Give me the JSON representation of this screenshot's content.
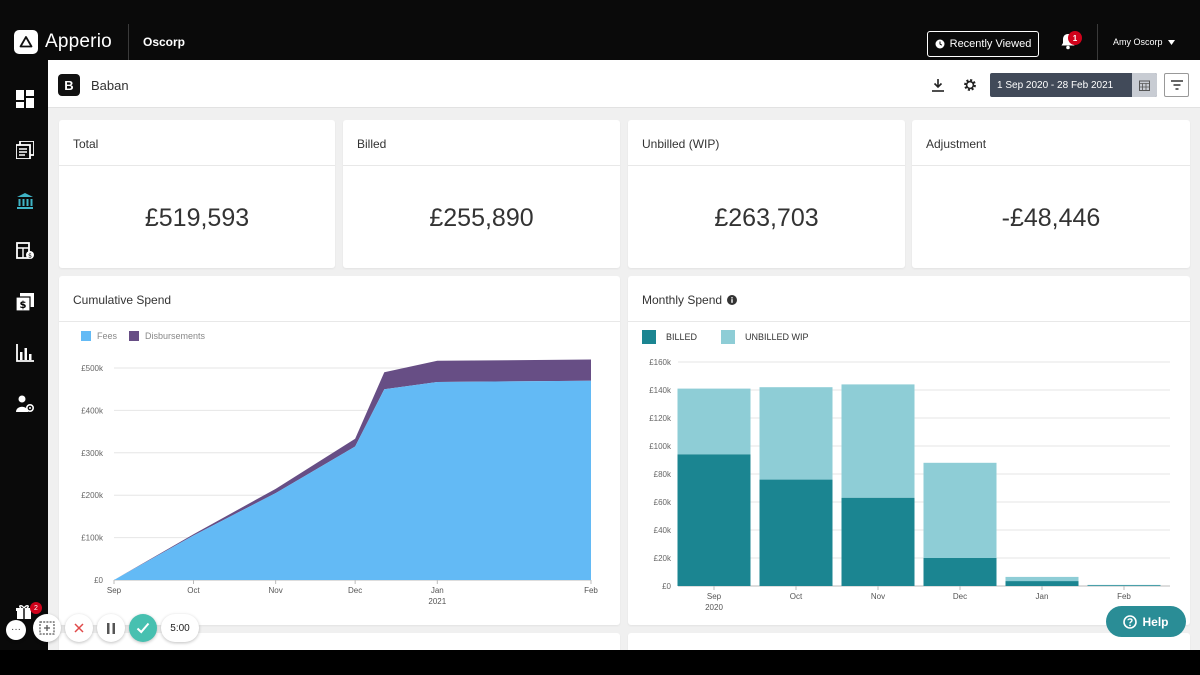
{
  "app": {
    "brand": "Apperio",
    "org": "Oscorp"
  },
  "topbar": {
    "recently_viewed": "Recently Viewed",
    "notification_count": "1",
    "user": "Amy Oscorp"
  },
  "workspace": {
    "badge": "B",
    "name": "Baban"
  },
  "filters": {
    "date_range": "1 Sep 2020 - 28 Feb 2021"
  },
  "stats": [
    {
      "label": "Total",
      "value": "£519,593"
    },
    {
      "label": "Billed",
      "value": "£255,890"
    },
    {
      "label": "Unbilled (WIP)",
      "value": "£263,703"
    },
    {
      "label": "Adjustment",
      "value": "-£48,446"
    }
  ],
  "colors": {
    "fees": "#63baf5",
    "disbursements": "#674e85",
    "billed": "#1b8591",
    "unbilled": "#8ecdd6",
    "help": "#2a8d96"
  },
  "chart_data": [
    {
      "type": "area",
      "title": "Cumulative Spend",
      "legend": [
        "Fees",
        "Disbursements"
      ],
      "x_ticks": [
        "Sep",
        "Oct",
        "Nov",
        "Dec",
        "Jan",
        "Feb"
      ],
      "x_tick_sublabels": {
        "Jan": "2021"
      },
      "y_ticks": [
        "£0",
        "£100k",
        "£200k",
        "£300k",
        "£400k",
        "£500k"
      ],
      "ylim": [
        0,
        500000
      ],
      "x": [
        "2020-09-01",
        "2020-10-01",
        "2020-11-01",
        "2020-12-01",
        "2020-12-12",
        "2021-01-01",
        "2021-02-28"
      ],
      "series": [
        {
          "name": "Fees",
          "values": [
            0,
            105000,
            205000,
            315000,
            450000,
            467000,
            470000
          ]
        },
        {
          "name": "Disbursements",
          "values": [
            0,
            3000,
            10000,
            18000,
            40000,
            50000,
            50000
          ]
        }
      ]
    },
    {
      "type": "bar",
      "stacked": true,
      "title": "Monthly Spend",
      "legend": [
        "BILLED",
        "UNBILLED WIP"
      ],
      "categories": [
        "Sep",
        "Oct",
        "Nov",
        "Dec",
        "Jan",
        "Feb"
      ],
      "category_sublabels": {
        "Sep": "2020"
      },
      "y_ticks": [
        "£0",
        "£20k",
        "£40k",
        "£60k",
        "£80k",
        "£100k",
        "£120k",
        "£140k",
        "£160k"
      ],
      "ylim": [
        0,
        160000
      ],
      "series": [
        {
          "name": "BILLED",
          "values": [
            94000,
            76000,
            63000,
            20000,
            3500,
            500
          ]
        },
        {
          "name": "UNBILLED WIP",
          "values": [
            47000,
            66000,
            81000,
            68000,
            3000,
            300
          ]
        }
      ]
    }
  ],
  "controls": {
    "timer": "5:00",
    "gift_count": "2",
    "help": "Help"
  }
}
